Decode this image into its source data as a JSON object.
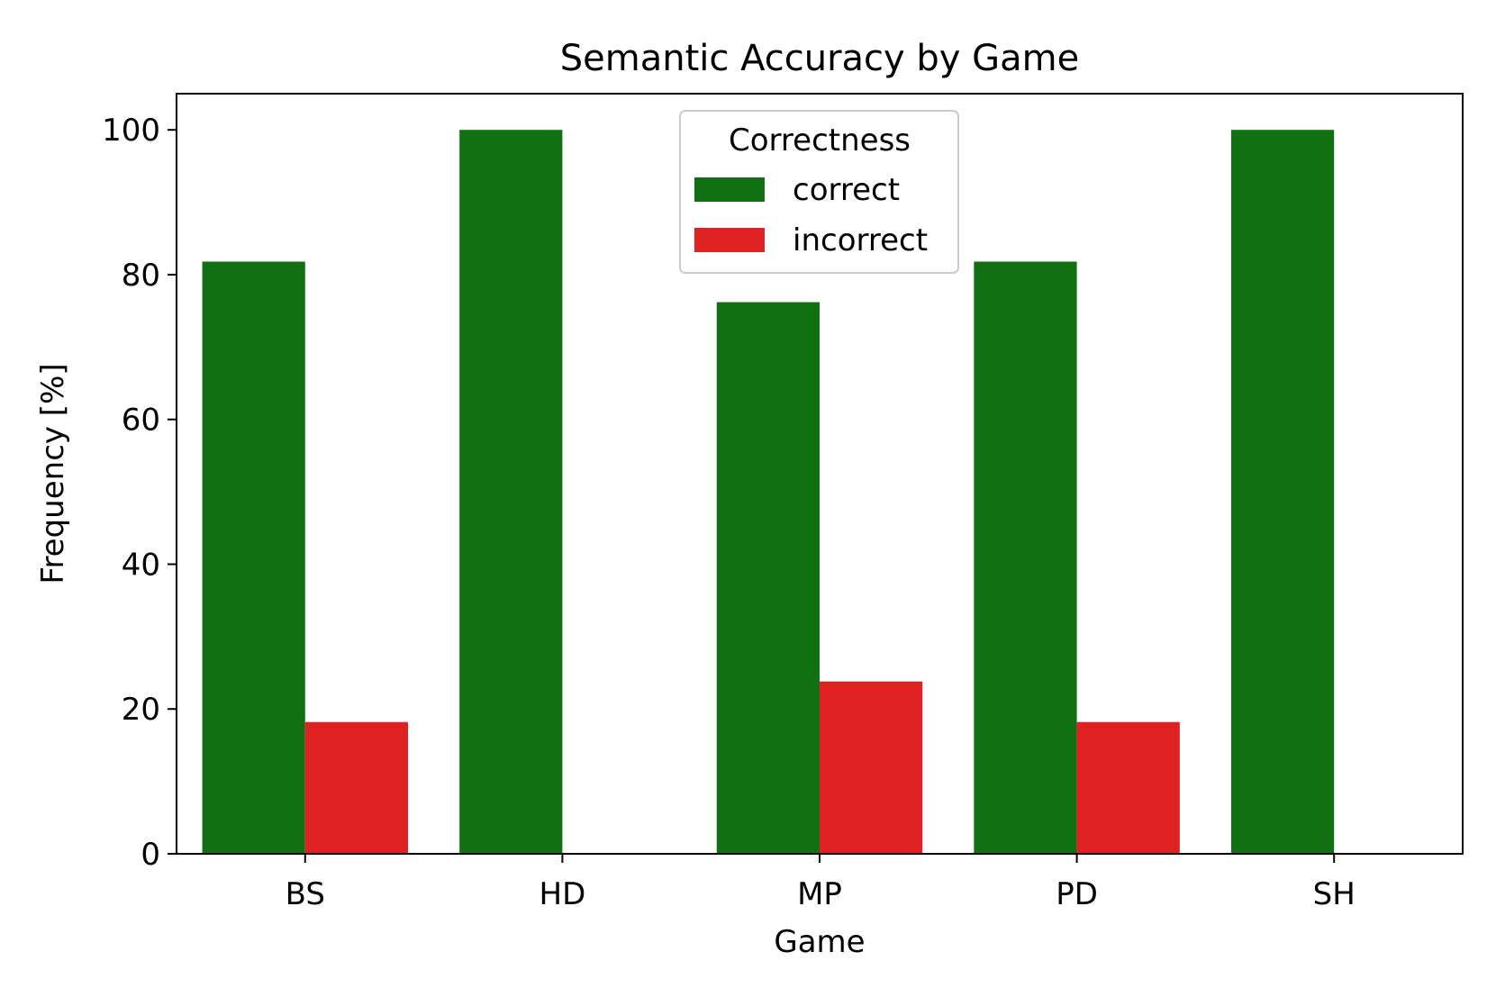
{
  "chart_data": {
    "type": "bar",
    "title": "Semantic Accuracy by Game",
    "xlabel": "Game",
    "ylabel": "Frequency [%]",
    "categories": [
      "BS",
      "HD",
      "MP",
      "PD",
      "SH"
    ],
    "series": [
      {
        "name": "correct",
        "color": "#117011",
        "values": [
          81.8,
          100,
          76.2,
          81.8,
          100
        ]
      },
      {
        "name": "incorrect",
        "color": "#e02121",
        "values": [
          18.2,
          0,
          23.8,
          18.2,
          0
        ]
      }
    ],
    "ylim": [
      0,
      105
    ],
    "yticks": [
      0,
      20,
      40,
      60,
      80,
      100
    ],
    "legend": {
      "title": "Correctness",
      "position": "top-center"
    },
    "grid": false
  }
}
